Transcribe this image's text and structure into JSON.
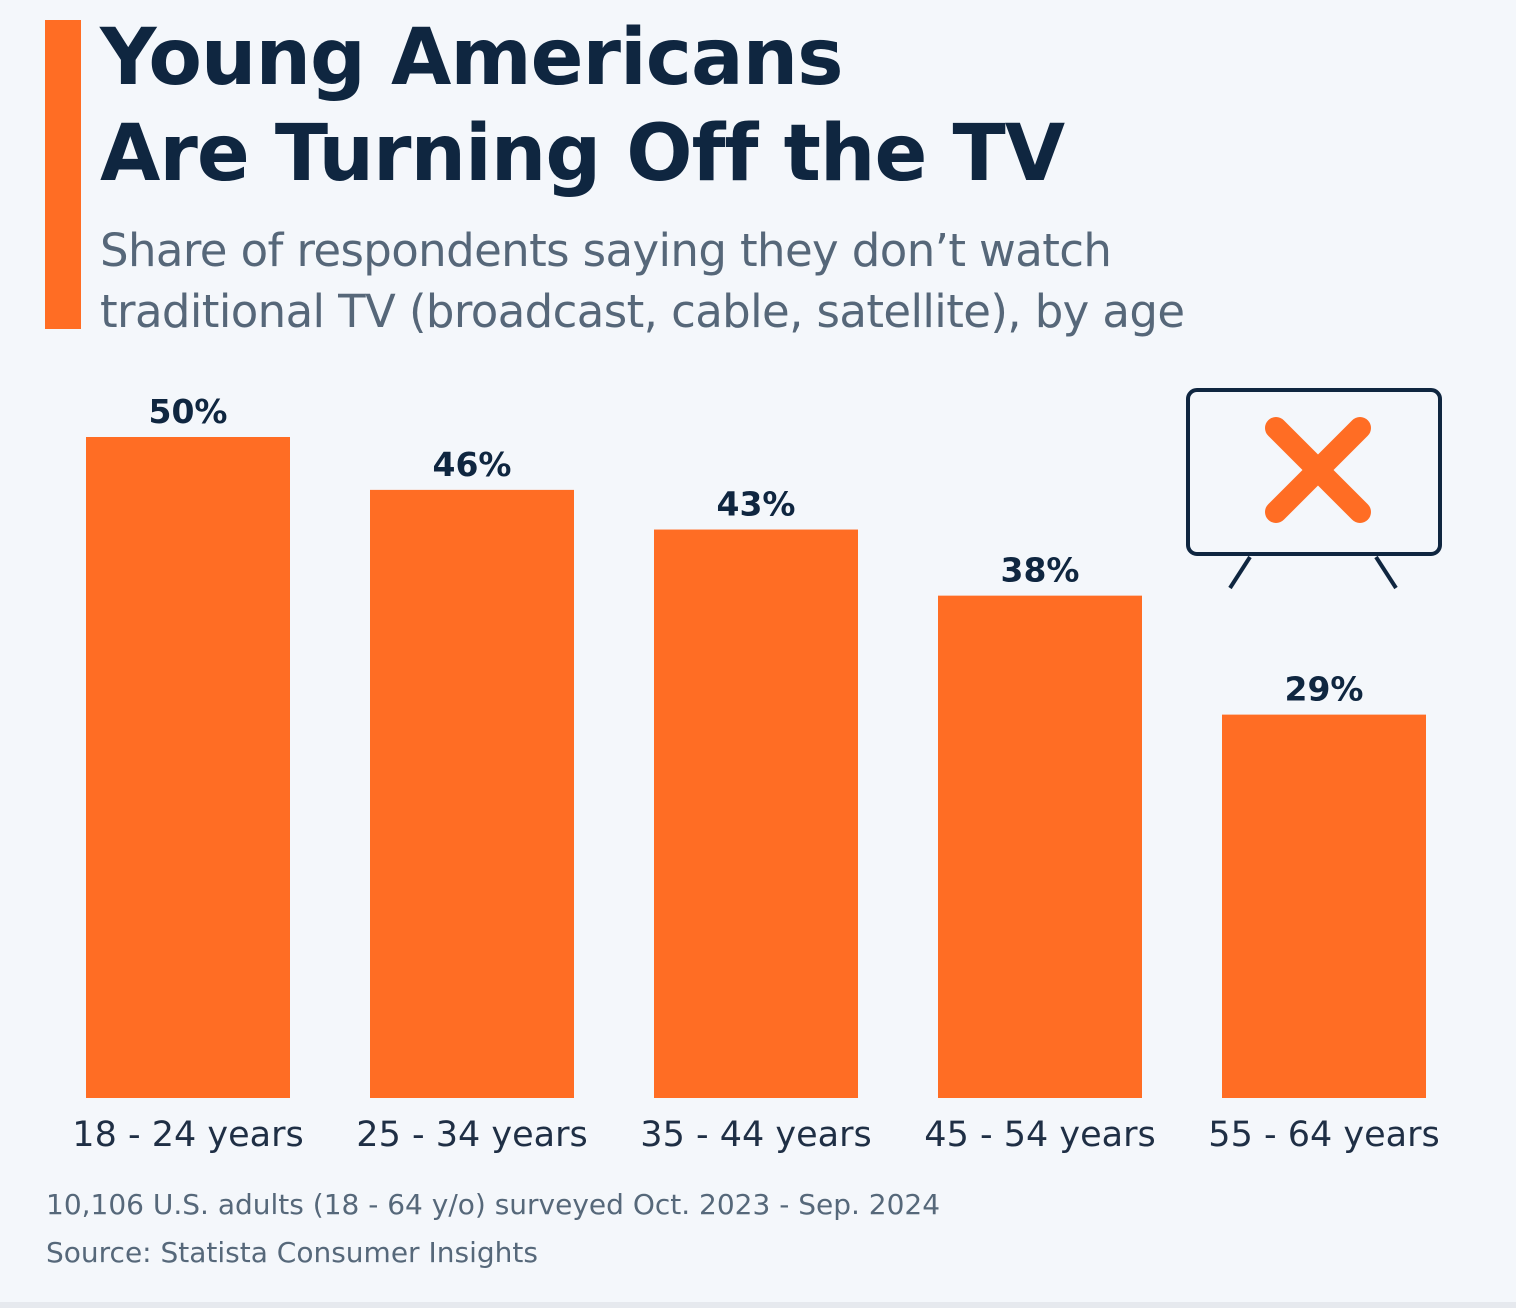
{
  "header": {
    "title_line1": "Young Americans",
    "title_line2": "Are Turning Off the TV",
    "subtitle": "Share of respondents saying they don’t watch traditional TV (broadcast, cable, satellite), by age"
  },
  "colors": {
    "accent": "#ff6d24",
    "title": "#0f2640",
    "background": "#f4f7fb"
  },
  "icon": {
    "name": "tv-crossed-out-icon"
  },
  "chart_data": {
    "type": "bar",
    "title": "Young Americans Are Turning Off the TV",
    "subtitle": "Share of respondents saying they don’t watch traditional TV (broadcast, cable, satellite), by age",
    "categories": [
      "18 - 24 years",
      "25 - 34 years",
      "35 - 44 years",
      "45 - 54 years",
      "55 - 64 years"
    ],
    "values": [
      50,
      46,
      43,
      38,
      29
    ],
    "value_labels": [
      "50%",
      "46%",
      "43%",
      "38%",
      "29%"
    ],
    "unit": "%",
    "xlabel": "",
    "ylabel": "",
    "ylim": [
      0,
      50
    ],
    "grid": false,
    "legend": "none",
    "bar_color": "#ff6d24"
  },
  "footer": {
    "note": "10,106 U.S. adults (18 - 64 y/o) surveyed Oct. 2023 - Sep. 2024",
    "source": "Source: Statista Consumer Insights"
  }
}
